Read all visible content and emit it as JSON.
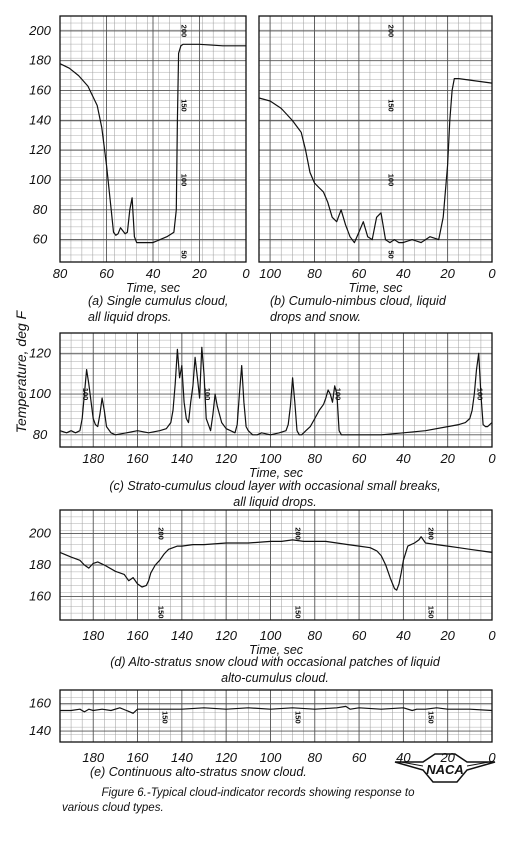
{
  "ylabel": "Temperature, deg F",
  "figure_caption": [
    "Figure 6.-Typical cloud-indicator records showing response to",
    "various cloud types."
  ],
  "logo_text": "NACA",
  "colors": {
    "ink": "#111111",
    "grid": "#9a9a9a",
    "paper": "#ffffff"
  },
  "chart_data": [
    {
      "id": "a",
      "type": "line",
      "xlabel": "Time, sec",
      "xlim": [
        80,
        0
      ],
      "ylim": [
        45,
        210
      ],
      "xticks": [
        80,
        60,
        40,
        20,
        0
      ],
      "yticks": [
        60,
        80,
        100,
        120,
        140,
        160,
        180,
        200
      ],
      "caption": [
        "(a) Single cumulus cloud,",
        "all liquid drops."
      ],
      "marks": [
        {
          "x": 29,
          "y": 200,
          "label": "200"
        },
        {
          "x": 29,
          "y": 150,
          "label": "150"
        },
        {
          "x": 29,
          "y": 100,
          "label": "100"
        },
        {
          "x": 29,
          "y": 50,
          "label": "50"
        }
      ],
      "series": [
        {
          "x": [
            80,
            76,
            72,
            68,
            64,
            62,
            60,
            58,
            57,
            56,
            55,
            54,
            53,
            52,
            51,
            50,
            49,
            48,
            47,
            46,
            44,
            40,
            34,
            31,
            30,
            29.5,
            29,
            28,
            27,
            26,
            20,
            10,
            0
          ],
          "y": [
            178,
            175,
            170,
            163,
            150,
            135,
            110,
            80,
            65,
            63,
            64,
            68,
            66,
            64,
            65,
            80,
            88,
            62,
            58,
            58,
            58,
            58,
            62,
            65,
            80,
            140,
            185,
            190,
            191,
            191,
            191,
            190,
            190
          ]
        }
      ]
    },
    {
      "id": "b",
      "type": "line",
      "xlabel": "Time, sec",
      "xlim": [
        105,
        0
      ],
      "ylim": [
        45,
        210
      ],
      "xticks": [
        100,
        80,
        60,
        40,
        20,
        0
      ],
      "yticks": [
        60,
        80,
        100,
        120,
        140,
        160,
        180,
        200
      ],
      "caption": [
        "(b) Cumulo-nimbus cloud, liquid",
        "drops and snow."
      ],
      "marks": [
        {
          "x": 48,
          "y": 200,
          "label": "200"
        },
        {
          "x": 48,
          "y": 150,
          "label": "150"
        },
        {
          "x": 48,
          "y": 100,
          "label": "100"
        },
        {
          "x": 48,
          "y": 50,
          "label": "50"
        }
      ],
      "series": [
        {
          "x": [
            105,
            100,
            95,
            90,
            86,
            84,
            82,
            80,
            78,
            76,
            74,
            72,
            70,
            68,
            66,
            64,
            62,
            60,
            58,
            56,
            54,
            52,
            50,
            48,
            46,
            44,
            42,
            40,
            36,
            32,
            28,
            24,
            22,
            20,
            19,
            18,
            17,
            15,
            10,
            5,
            0
          ],
          "y": [
            155,
            153,
            148,
            140,
            132,
            120,
            105,
            98,
            95,
            92,
            85,
            75,
            72,
            80,
            70,
            62,
            58,
            65,
            72,
            62,
            60,
            75,
            78,
            60,
            58,
            60,
            58,
            58,
            60,
            58,
            62,
            60,
            75,
            110,
            140,
            160,
            168,
            168,
            167,
            166,
            165
          ]
        }
      ]
    },
    {
      "id": "c",
      "type": "line",
      "xlabel": "Time, sec",
      "xlim": [
        195,
        0
      ],
      "ylim": [
        74,
        130
      ],
      "xticks": [
        180,
        160,
        140,
        120,
        100,
        80,
        60,
        40,
        20,
        0
      ],
      "yticks": [
        80,
        100,
        120
      ],
      "caption": [
        "(c) Strato-cumulus cloud layer with occasional small breaks,",
        "all liquid drops."
      ],
      "marks": [
        {
          "x": 186,
          "y": 100,
          "label": "100"
        },
        {
          "x": 131,
          "y": 100,
          "label": "100"
        },
        {
          "x": 72,
          "y": 100,
          "label": "100"
        },
        {
          "x": 8,
          "y": 100,
          "label": "100"
        }
      ],
      "series": [
        {
          "x": [
            195,
            192,
            190,
            188,
            186,
            185,
            184,
            183,
            182,
            180,
            179,
            178,
            177,
            176,
            175,
            174,
            172,
            170,
            165,
            160,
            155,
            150,
            147,
            145,
            144,
            143,
            142,
            141,
            140,
            139,
            138,
            137,
            136,
            135,
            134,
            133,
            132,
            131,
            130,
            129,
            128,
            127,
            126,
            125,
            124,
            122,
            120,
            118,
            116,
            115,
            114,
            113,
            112,
            111,
            110,
            109,
            108,
            106,
            104,
            100,
            96,
            93,
            92,
            91,
            90,
            89,
            88,
            87,
            86,
            85,
            84,
            82,
            80,
            78,
            76,
            75,
            74,
            73,
            72,
            71,
            70,
            69,
            68,
            65,
            60,
            50,
            40,
            30,
            20,
            15,
            12,
            10,
            9,
            8,
            7,
            6,
            5,
            4,
            3,
            2,
            0
          ],
          "y": [
            82,
            81,
            82,
            81,
            82,
            88,
            100,
            112,
            105,
            88,
            85,
            84,
            90,
            98,
            92,
            84,
            81,
            80,
            81,
            82,
            81,
            82,
            83,
            86,
            92,
            105,
            122,
            108,
            114,
            96,
            88,
            86,
            96,
            104,
            118,
            108,
            98,
            123,
            110,
            88,
            85,
            82,
            90,
            100,
            94,
            86,
            83,
            82,
            81,
            85,
            100,
            114,
            96,
            84,
            82,
            81,
            80,
            80,
            81,
            80,
            81,
            82,
            85,
            94,
            108,
            96,
            82,
            80,
            80,
            81,
            82,
            84,
            88,
            92,
            95,
            98,
            102,
            100,
            96,
            104,
            100,
            82,
            80,
            80,
            80,
            80,
            81,
            82,
            84,
            85,
            86,
            88,
            92,
            100,
            112,
            120,
            100,
            85,
            84,
            84,
            86
          ]
        }
      ]
    },
    {
      "id": "d",
      "type": "line",
      "xlabel": "Time, sec",
      "xlim": [
        195,
        0
      ],
      "ylim": [
        145,
        215
      ],
      "xticks": [
        180,
        160,
        140,
        120,
        100,
        80,
        60,
        40,
        20,
        0
      ],
      "yticks": [
        160,
        180,
        200
      ],
      "caption": [
        "(d) Alto-stratus snow cloud with occasional patches of liquid",
        "alto-cumulus cloud."
      ],
      "marks": [
        {
          "x": 152,
          "y": 200,
          "label": "200"
        },
        {
          "x": 152,
          "y": 150,
          "label": "150"
        },
        {
          "x": 90,
          "y": 200,
          "label": "200"
        },
        {
          "x": 90,
          "y": 150,
          "label": "150"
        },
        {
          "x": 30,
          "y": 200,
          "label": "200"
        },
        {
          "x": 30,
          "y": 150,
          "label": "150"
        }
      ],
      "series": [
        {
          "x": [
            195,
            190,
            186,
            184,
            182,
            180,
            178,
            175,
            170,
            166,
            164,
            162,
            160,
            158,
            156,
            155,
            154,
            152,
            150,
            148,
            146,
            144,
            142,
            140,
            135,
            130,
            120,
            110,
            100,
            95,
            90,
            85,
            80,
            75,
            70,
            65,
            60,
            55,
            52,
            50,
            48,
            46,
            44,
            43,
            42,
            41,
            40,
            38,
            35,
            33,
            32,
            30,
            25,
            20,
            15,
            10,
            5,
            0
          ],
          "y": [
            188,
            185,
            183,
            180,
            178,
            181,
            182,
            180,
            176,
            174,
            170,
            172,
            168,
            166,
            167,
            170,
            175,
            180,
            183,
            187,
            190,
            191,
            192,
            192,
            193,
            193,
            194,
            194,
            195,
            195,
            196,
            195,
            195,
            195,
            194,
            193,
            192,
            191,
            189,
            186,
            180,
            172,
            165,
            164,
            168,
            175,
            183,
            192,
            194,
            196,
            198,
            194,
            193,
            192,
            191,
            190,
            189,
            188
          ]
        }
      ]
    },
    {
      "id": "e",
      "type": "line",
      "xlabel": "",
      "xlim": [
        195,
        0
      ],
      "ylim": [
        132,
        170
      ],
      "xticks": [
        180,
        160,
        140,
        120,
        100,
        80,
        60,
        40,
        20,
        0
      ],
      "yticks": [
        140,
        160
      ],
      "caption": [
        "(e) Continuous alto-stratus snow cloud."
      ],
      "marks": [
        {
          "x": 150,
          "y": 150,
          "label": "150"
        },
        {
          "x": 90,
          "y": 150,
          "label": "150"
        },
        {
          "x": 30,
          "y": 150,
          "label": "150"
        }
      ],
      "series": [
        {
          "x": [
            195,
            190,
            186,
            184,
            182,
            180,
            176,
            172,
            168,
            165,
            162,
            160,
            156,
            150,
            140,
            130,
            120,
            110,
            100,
            90,
            80,
            70,
            66,
            64,
            60,
            50,
            40,
            36,
            34,
            30,
            25,
            20,
            10,
            0
          ],
          "y": [
            155,
            155,
            156,
            154,
            156,
            155,
            156,
            155,
            157,
            155,
            153,
            156,
            156,
            156,
            156,
            157,
            156,
            157,
            156,
            157,
            156,
            157,
            158,
            156,
            157,
            156,
            157,
            155,
            156,
            156,
            157,
            156,
            156,
            155
          ]
        }
      ]
    }
  ]
}
